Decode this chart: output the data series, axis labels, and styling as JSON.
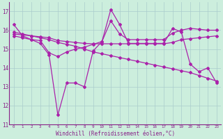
{
  "x": [
    0,
    1,
    2,
    3,
    4,
    5,
    6,
    7,
    8,
    9,
    10,
    11,
    12,
    13,
    14,
    15,
    16,
    17,
    18,
    19,
    20,
    21,
    22,
    23
  ],
  "series_volatile": [
    16.3,
    15.7,
    15.5,
    15.3,
    14.7,
    11.5,
    13.2,
    13.2,
    13.0,
    14.9,
    15.4,
    17.1,
    16.3,
    15.3,
    15.3,
    15.3,
    15.3,
    15.3,
    16.1,
    15.9,
    14.2,
    13.8,
    14.0,
    13.2
  ],
  "series_upper": [
    15.7,
    15.6,
    15.5,
    15.45,
    14.8,
    14.6,
    14.85,
    15.0,
    15.1,
    15.25,
    15.4,
    16.5,
    15.8,
    15.5,
    15.5,
    15.5,
    15.5,
    15.5,
    15.85,
    16.0,
    16.1,
    16.05,
    16.0,
    16.0
  ],
  "series_flat": [
    15.8,
    15.75,
    15.7,
    15.65,
    15.6,
    15.45,
    15.4,
    15.35,
    15.3,
    15.28,
    15.28,
    15.28,
    15.28,
    15.28,
    15.28,
    15.28,
    15.28,
    15.28,
    15.35,
    15.5,
    15.55,
    15.6,
    15.65,
    15.7
  ],
  "series_decline": [
    15.9,
    15.8,
    15.7,
    15.6,
    15.5,
    15.35,
    15.25,
    15.15,
    15.0,
    14.85,
    14.75,
    14.65,
    14.55,
    14.45,
    14.35,
    14.25,
    14.15,
    14.05,
    13.95,
    13.85,
    13.75,
    13.6,
    13.45,
    13.3
  ],
  "color": "#aa22aa",
  "bg_color": "#cceedd",
  "grid_color": "#aacccc",
  "ylim": [
    11,
    17.5
  ],
  "yticks": [
    11,
    12,
    13,
    14,
    15,
    16,
    17
  ],
  "xtick_labels": [
    "0",
    "1",
    "2",
    "3",
    "4",
    "5",
    "6",
    "7",
    "8",
    "9",
    "10",
    "11",
    "12",
    "13",
    "14",
    "15",
    "16",
    "17",
    "18",
    "19",
    "20",
    "21",
    "22",
    "23"
  ],
  "xlabel": "Windchill (Refroidissement éolien,°C)",
  "font_color": "#882288"
}
